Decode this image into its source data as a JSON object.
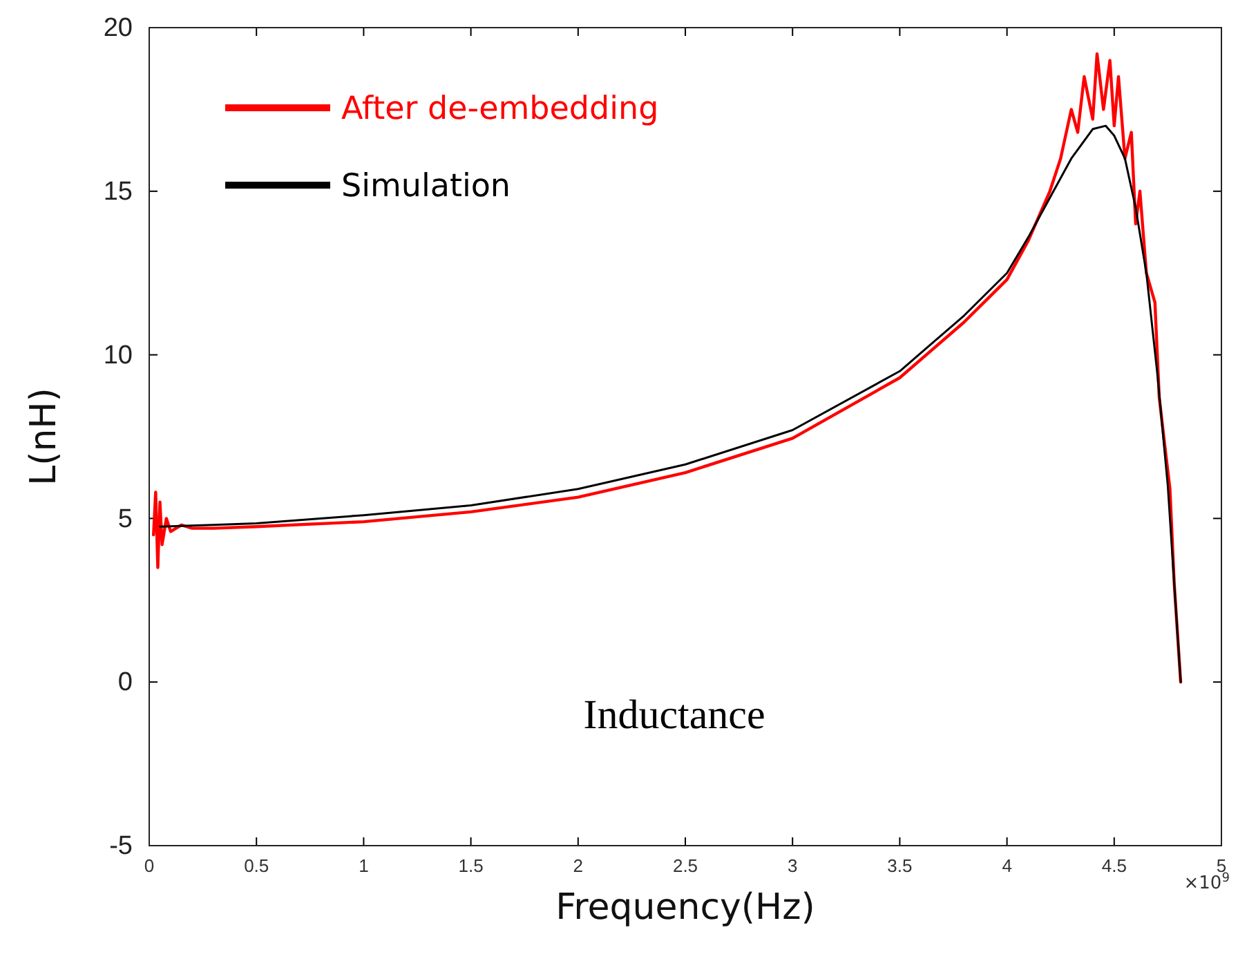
{
  "chart_data": {
    "type": "line",
    "xlabel": "Frequency(Hz)",
    "ylabel": "L(nH)",
    "xlim": [
      0,
      5
    ],
    "xticks": [
      0,
      0.5,
      1,
      1.5,
      2,
      2.5,
      3,
      3.5,
      4,
      4.5,
      5
    ],
    "ylim": [
      -5,
      20
    ],
    "yticks": [
      -5,
      0,
      5,
      10,
      15,
      20
    ],
    "grid": false,
    "legend": "top left",
    "marker": "none",
    "line_style": "solid",
    "annotations": [
      "×10$^{9}$",
      "Inductance"
    ],
    "series": [
      {
        "name": "After de-embedding",
        "color": "#ff0000",
        "x": [
          0.02,
          0.03,
          0.04,
          0.05,
          0.06,
          0.08,
          0.1,
          0.15,
          0.2,
          0.3,
          0.5,
          1,
          1.5,
          2,
          2.5,
          3,
          3.5,
          3.8,
          4,
          4.1,
          4.2,
          4.25,
          4.3,
          4.33,
          4.36,
          4.4,
          4.42,
          4.45,
          4.48,
          4.5,
          4.52,
          4.55,
          4.58,
          4.6,
          4.62,
          4.65,
          4.69,
          4.71,
          4.74,
          4.76,
          4.78,
          4.81
        ],
        "values": [
          4.5,
          5.8,
          3.5,
          5.5,
          4.2,
          5.0,
          4.6,
          4.8,
          4.7,
          4.7,
          4.75,
          4.9,
          5.2,
          5.65,
          6.4,
          7.45,
          9.3,
          11,
          12.3,
          13.5,
          15,
          16,
          17.5,
          16.8,
          18.5,
          17.2,
          19.2,
          17.5,
          19,
          17,
          18.5,
          16,
          16.8,
          14,
          15,
          12.5,
          11.6,
          8.7,
          7,
          5.9,
          3,
          0
        ]
      },
      {
        "name": "Simulation",
        "color": "#000000",
        "x": [
          0.05,
          0.3,
          0.5,
          1,
          1.5,
          2,
          2.5,
          3,
          3.5,
          3.8,
          4,
          4.1,
          4.2,
          4.3,
          4.4,
          4.46,
          4.5,
          4.55,
          4.6,
          4.65,
          4.7,
          4.75,
          4.8,
          4.81
        ],
        "values": [
          4.75,
          4.8,
          4.85,
          5.1,
          5.4,
          5.9,
          6.65,
          7.7,
          9.5,
          11.2,
          12.5,
          13.6,
          14.8,
          16,
          16.9,
          17,
          16.7,
          16,
          14.5,
          12.5,
          9.5,
          6,
          1,
          0
        ]
      }
    ]
  }
}
